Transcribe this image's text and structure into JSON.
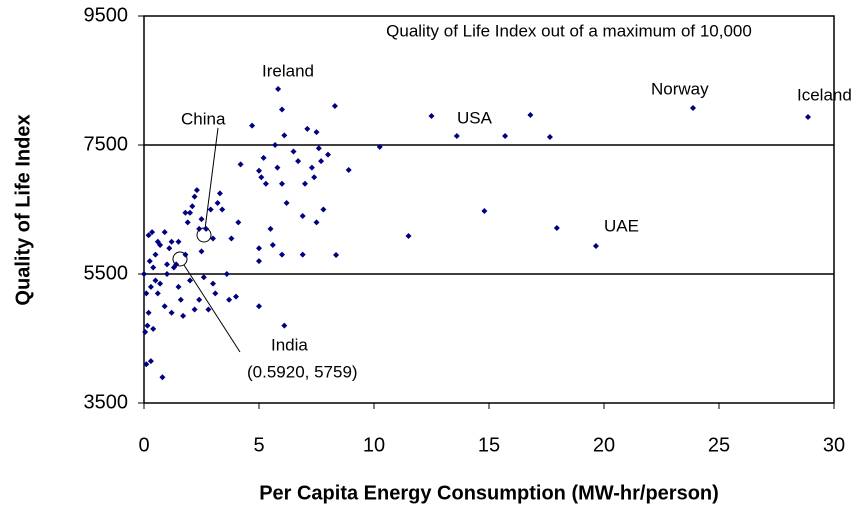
{
  "chart_data": {
    "type": "scatter",
    "xlabel": "Per Capita Energy Consumption (MW-hr/person)",
    "ylabel": "Quality of Life Index",
    "annotations": [
      "Quality of Life Index out of a maximum of 10,000",
      "Ireland",
      "China",
      "USA",
      "Norway",
      "Iceland",
      "UAE",
      "India",
      "(0.5920, 5759)"
    ],
    "color": "#000080",
    "xlim": [
      0,
      30
    ],
    "xticks": [
      0,
      5,
      10,
      15,
      20,
      25,
      30
    ],
    "ylim": [
      3500,
      9500
    ],
    "yticks": [
      3500,
      5500,
      7500,
      9500
    ],
    "grid": true,
    "x": [
      5.83,
      23.87,
      28.87,
      13.6,
      19.65,
      15.7,
      17.65,
      16.8,
      14.8,
      17.95,
      12.5,
      11.5,
      10.25,
      8.3,
      8.9,
      8.35,
      0.1,
      0.05,
      0.15,
      0.2,
      0.3,
      0.4,
      0.5,
      0.6,
      0.2,
      0.35,
      0.5,
      0.7,
      0.8,
      0.9,
      1.0,
      1.1,
      1.2,
      1.3,
      0.6,
      0.4,
      0.1,
      0.25,
      0.7,
      1.4,
      1.6,
      1.7,
      1.8,
      1.9,
      2.0,
      2.1,
      2.2,
      2.3,
      2.4,
      2.5,
      2.6,
      2.2,
      2.0,
      1.5,
      2.8,
      3.0,
      3.1,
      3.2,
      3.3,
      3.4,
      3.6,
      3.7,
      4.0,
      3.8,
      4.1,
      4.2,
      3.0,
      2.7,
      1.2,
      0.9,
      0.3,
      1.0,
      1.5,
      0.0,
      2.9,
      2.5,
      1.8,
      2.4,
      4.7,
      5.0,
      5.1,
      5.2,
      5.3,
      5.5,
      5.6,
      5.0,
      5.0,
      5.0,
      5.8,
      5.7,
      6.0,
      6.1,
      6.2,
      6.0,
      6.1,
      6.5,
      6.7,
      6.9,
      7.0,
      7.1,
      7.3,
      7.4,
      7.5,
      7.5,
      7.6,
      7.7,
      7.8,
      8.0,
      6.9,
      6.0
    ],
    "values": [
      8368,
      8074,
      7934,
      7640,
      5934,
      7640,
      7625,
      7965,
      6477,
      6213,
      7950,
      6090,
      7470,
      8105,
      7112,
      5795,
      4100,
      4600,
      4700,
      4900,
      5300,
      5600,
      5800,
      6000,
      6100,
      6150,
      5400,
      5350,
      3900,
      5000,
      5500,
      5900,
      6000,
      5600,
      5200,
      4650,
      5200,
      5700,
      5950,
      5650,
      5100,
      4850,
      5800,
      6300,
      6450,
      6550,
      6700,
      6800,
      6200,
      6350,
      5450,
      4950,
      5400,
      5300,
      4950,
      5350,
      5200,
      6600,
      6750,
      6500,
      5500,
      5100,
      5150,
      6050,
      6300,
      7200,
      6050,
      6200,
      4900,
      6150,
      4150,
      5650,
      6000,
      5500,
      6500,
      5850,
      6450,
      5100,
      7800,
      7100,
      7000,
      7300,
      6900,
      6200,
      5950,
      5900,
      5700,
      5000,
      7150,
      7500,
      8050,
      7650,
      6600,
      5800,
      4700,
      7400,
      7250,
      6400,
      6900,
      7750,
      7150,
      7000,
      7700,
      6300,
      7450,
      7250,
      6500,
      7350,
      5800,
      6900
    ]
  }
}
